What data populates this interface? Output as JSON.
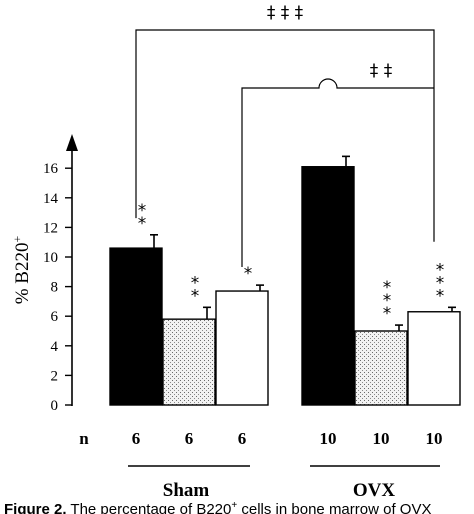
{
  "chart_data": {
    "type": "bar",
    "ylabel_main": "% B220",
    "ylabel_sup": "+",
    "ylim": [
      0,
      16
    ],
    "yticks": [
      "0",
      "2",
      "4",
      "6",
      "8",
      "10",
      "12",
      "14",
      "16"
    ],
    "n_label": "n",
    "groups": [
      "Sham",
      "OVX"
    ],
    "bars": [
      {
        "group": "Sham",
        "n": "6",
        "value": 10.6,
        "error": 0.9,
        "fill": "black",
        "sig": [
          "*",
          "*"
        ]
      },
      {
        "group": "Sham",
        "n": "6",
        "value": 5.8,
        "error": 0.8,
        "fill": "dotted",
        "sig": [
          "*",
          "*"
        ]
      },
      {
        "group": "Sham",
        "n": "6",
        "value": 7.7,
        "error": 0.4,
        "fill": "white",
        "sig": [
          "*"
        ]
      },
      {
        "group": "OVX",
        "n": "10",
        "value": 16.1,
        "error": 0.7,
        "fill": "black",
        "sig": []
      },
      {
        "group": "OVX",
        "n": "10",
        "value": 5.0,
        "error": 0.4,
        "fill": "dotted",
        "sig": [
          "*",
          "*",
          "*"
        ]
      },
      {
        "group": "OVX",
        "n": "10",
        "value": 6.3,
        "error": 0.3,
        "fill": "white",
        "sig": [
          "*",
          "*",
          "*"
        ]
      }
    ],
    "brackets": [
      {
        "from_bar": 0,
        "to_bar": 5,
        "label": "‡ ‡ ‡"
      },
      {
        "from_bar": 2,
        "to_bar": 5,
        "label": "‡ ‡"
      }
    ]
  },
  "caption": {
    "prefix": "Figure 2.",
    "text_pre": " The percentage of B220",
    "sup": "+",
    "text_post": " cells in bone marrow of OVX"
  }
}
